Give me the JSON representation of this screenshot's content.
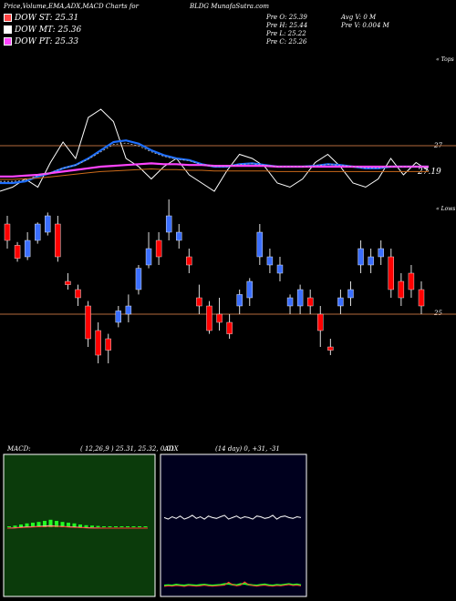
{
  "header": {
    "title": "Price,Volume,EMA,ADX,MACD Charts for",
    "symbol": "BLDG MunafaSutra.com"
  },
  "legend": [
    {
      "label": "DOW ST: 25.31",
      "color": "#ff4444"
    },
    {
      "label": "DOW MT: 25.36",
      "color": "#ffffff"
    },
    {
      "label": "DOW PT: 25.33",
      "color": "#ff44ff"
    }
  ],
  "price_info": {
    "open": "Pre  O: 25.39",
    "high": "Pre  H: 25.44",
    "low": "Pre  L: 25.22",
    "close": "Pre  C: 25.26",
    "avg_vol": "Avg V: 0  M",
    "pre_vol": "Pre  V: 0.004  M"
  },
  "panel_labels": {
    "top": "« Tops",
    "lows": "« Lows",
    "level_27": "27",
    "level_2719": "27.19",
    "level_25": "25"
  },
  "macd_label": "MACD:",
  "macd_values": "( 12,26,9 ) 25.31, 25.32,  0.01",
  "adx_label": "ADX",
  "adx_values": "(14  day) 0, +31, -31",
  "colors": {
    "bull": "#ff0000",
    "bear": "#3b6fff",
    "ref_line": "#b36a3c",
    "ema_short": "#1e6fff",
    "ema_long": "#ff44ff",
    "macd_bg": "#0b3b0b",
    "adx_bg": "#00001e"
  },
  "chart_data": [
    {
      "type": "line",
      "title": "EMA panel",
      "reference_lines": [
        27,
        27.19
      ],
      "series": [
        {
          "values": [
            0.0,
            0.05,
            0.15,
            0.05,
            0.35,
            0.6,
            0.4,
            0.9,
            1.0,
            0.85,
            0.4,
            0.3,
            0.15,
            0.3,
            0.4,
            0.2,
            0.1,
            0.0,
            0.25,
            0.45,
            0.4,
            0.3,
            0.1,
            0.05,
            0.15,
            0.35,
            0.45,
            0.3,
            0.1,
            0.05,
            0.15,
            0.4,
            0.2,
            0.35,
            0.25
          ]
        },
        {
          "values": [
            0.1,
            0.1,
            0.12,
            0.18,
            0.22,
            0.28,
            0.32,
            0.4,
            0.5,
            0.6,
            0.62,
            0.58,
            0.5,
            0.44,
            0.4,
            0.38,
            0.33,
            0.3,
            0.3,
            0.33,
            0.34,
            0.32,
            0.3,
            0.3,
            0.3,
            0.31,
            0.33,
            0.32,
            0.3,
            0.28,
            0.28,
            0.3,
            0.3,
            0.3,
            0.3
          ]
        },
        {
          "values": [
            0.18,
            0.18,
            0.19,
            0.2,
            0.22,
            0.24,
            0.26,
            0.28,
            0.3,
            0.31,
            0.32,
            0.33,
            0.34,
            0.33,
            0.33,
            0.32,
            0.32,
            0.31,
            0.31,
            0.31,
            0.31,
            0.31,
            0.3,
            0.3,
            0.3,
            0.3,
            0.3,
            0.3,
            0.3,
            0.3,
            0.3,
            0.3,
            0.3,
            0.3,
            0.3
          ]
        }
      ]
    },
    {
      "type": "bar",
      "title": "Price panel",
      "reference_lines": [
        25
      ],
      "candles": [
        {
          "o": 0.55,
          "c": 0.45,
          "h": 0.6,
          "l": 0.4
        },
        {
          "o": 0.42,
          "c": 0.34,
          "h": 0.44,
          "l": 0.32
        },
        {
          "o": 0.35,
          "c": 0.45,
          "h": 0.5,
          "l": 0.33
        },
        {
          "o": 0.45,
          "c": 0.55,
          "h": 0.56,
          "l": 0.43
        },
        {
          "o": 0.5,
          "c": 0.6,
          "h": 0.62,
          "l": 0.48
        },
        {
          "o": 0.55,
          "c": 0.35,
          "h": 0.6,
          "l": 0.32
        },
        {
          "o": 0.2,
          "c": 0.18,
          "h": 0.25,
          "l": 0.15
        },
        {
          "o": 0.15,
          "c": 0.1,
          "h": 0.18,
          "l": 0.05
        },
        {
          "o": 0.05,
          "c": -0.15,
          "h": 0.08,
          "l": -0.2
        },
        {
          "o": -0.1,
          "c": -0.25,
          "h": -0.05,
          "l": -0.3
        },
        {
          "o": -0.15,
          "c": -0.22,
          "h": -0.12,
          "l": -0.3
        },
        {
          "o": -0.05,
          "c": 0.02,
          "h": 0.05,
          "l": -0.08
        },
        {
          "o": 0.0,
          "c": 0.05,
          "h": 0.12,
          "l": -0.05
        },
        {
          "o": 0.15,
          "c": 0.28,
          "h": 0.3,
          "l": 0.12
        },
        {
          "o": 0.3,
          "c": 0.4,
          "h": 0.5,
          "l": 0.28
        },
        {
          "o": 0.45,
          "c": 0.35,
          "h": 0.5,
          "l": 0.3
        },
        {
          "o": 0.5,
          "c": 0.6,
          "h": 0.7,
          "l": 0.45
        },
        {
          "o": 0.45,
          "c": 0.5,
          "h": 0.55,
          "l": 0.4
        },
        {
          "o": 0.35,
          "c": 0.3,
          "h": 0.4,
          "l": 0.25
        },
        {
          "o": 0.1,
          "c": 0.05,
          "h": 0.18,
          "l": 0.0
        },
        {
          "o": 0.05,
          "c": -0.1,
          "h": 0.08,
          "l": -0.12
        },
        {
          "o": 0.0,
          "c": -0.05,
          "h": 0.1,
          "l": -0.1
        },
        {
          "o": -0.05,
          "c": -0.12,
          "h": 0.0,
          "l": -0.15
        },
        {
          "o": 0.05,
          "c": 0.12,
          "h": 0.15,
          "l": 0.0
        },
        {
          "o": 0.1,
          "c": 0.2,
          "h": 0.22,
          "l": 0.05
        },
        {
          "o": 0.35,
          "c": 0.5,
          "h": 0.55,
          "l": 0.3
        },
        {
          "o": 0.3,
          "c": 0.35,
          "h": 0.4,
          "l": 0.25
        },
        {
          "o": 0.25,
          "c": 0.3,
          "h": 0.35,
          "l": 0.2
        },
        {
          "o": 0.05,
          "c": 0.1,
          "h": 0.12,
          "l": 0.0
        },
        {
          "o": 0.05,
          "c": 0.15,
          "h": 0.18,
          "l": 0.0
        },
        {
          "o": 0.1,
          "c": 0.05,
          "h": 0.15,
          "l": 0.0
        },
        {
          "o": 0.0,
          "c": -0.1,
          "h": 0.05,
          "l": -0.2
        },
        {
          "o": -0.2,
          "c": -0.22,
          "h": -0.15,
          "l": -0.25
        },
        {
          "o": 0.05,
          "c": 0.1,
          "h": 0.15,
          "l": 0.0
        },
        {
          "o": 0.1,
          "c": 0.15,
          "h": 0.2,
          "l": 0.05
        },
        {
          "o": 0.3,
          "c": 0.4,
          "h": 0.45,
          "l": 0.25
        },
        {
          "o": 0.3,
          "c": 0.35,
          "h": 0.4,
          "l": 0.25
        },
        {
          "o": 0.35,
          "c": 0.4,
          "h": 0.45,
          "l": 0.3
        },
        {
          "o": 0.35,
          "c": 0.15,
          "h": 0.4,
          "l": 0.1
        },
        {
          "o": 0.2,
          "c": 0.1,
          "h": 0.25,
          "l": 0.05
        },
        {
          "o": 0.25,
          "c": 0.15,
          "h": 0.3,
          "l": 0.1
        },
        {
          "o": 0.15,
          "c": 0.05,
          "h": 0.2,
          "l": 0.0
        }
      ]
    },
    {
      "type": "line",
      "title": "MACD",
      "series": [
        {
          "values": [
            0,
            0.02,
            0.05,
            0.08,
            0.1,
            0.12,
            0.15,
            0.18,
            0.15,
            0.12,
            0.1,
            0.08,
            0.05,
            0.03,
            0.02,
            0.01,
            0,
            0,
            0,
            0,
            0,
            0,
            0,
            0
          ]
        },
        {
          "values": [
            0,
            0.01,
            0.03,
            0.06,
            0.08,
            0.1,
            0.12,
            0.14,
            0.13,
            0.11,
            0.08,
            0.06,
            0.04,
            0.02,
            0.01,
            0,
            0,
            0,
            0,
            0,
            0,
            0,
            0,
            0
          ]
        }
      ]
    },
    {
      "type": "line",
      "title": "ADX",
      "series": [
        {
          "values": [
            0.8,
            0.7,
            0.85,
            0.75,
            0.9,
            0.7,
            0.8,
            0.95,
            0.75,
            0.85,
            0.7,
            0.9,
            0.8,
            0.75,
            0.85,
            0.95,
            0.7,
            0.8,
            0.9,
            0.75,
            0.85,
            0.8,
            0.7,
            0.9,
            0.85,
            0.75,
            0.8,
            0.95,
            0.7,
            0.85,
            0.9,
            0.8,
            0.75,
            0.85,
            0.8
          ]
        },
        {
          "values": [
            0.1,
            0.12,
            0.1,
            0.15,
            0.12,
            0.1,
            0.14,
            0.12,
            0.1,
            0.13,
            0.15,
            0.12,
            0.1,
            0.12,
            0.14,
            0.18,
            0.2,
            0.15,
            0.12,
            0.18,
            0.2,
            0.15,
            0.12,
            0.1,
            0.14,
            0.16,
            0.12,
            0.1,
            0.14,
            0.12,
            0.15,
            0.18,
            0.14,
            0.16,
            0.12
          ]
        },
        {
          "values": [
            0.05,
            0.08,
            0.06,
            0.1,
            0.08,
            0.05,
            0.1,
            0.08,
            0.06,
            0.08,
            0.12,
            0.08,
            0.06,
            0.08,
            0.1,
            0.12,
            0.28,
            0.15,
            0.08,
            0.12,
            0.3,
            0.15,
            0.1,
            0.06,
            0.1,
            0.12,
            0.08,
            0.06,
            0.1,
            0.08,
            0.12,
            0.15,
            0.1,
            0.12,
            0.08
          ]
        }
      ]
    }
  ]
}
